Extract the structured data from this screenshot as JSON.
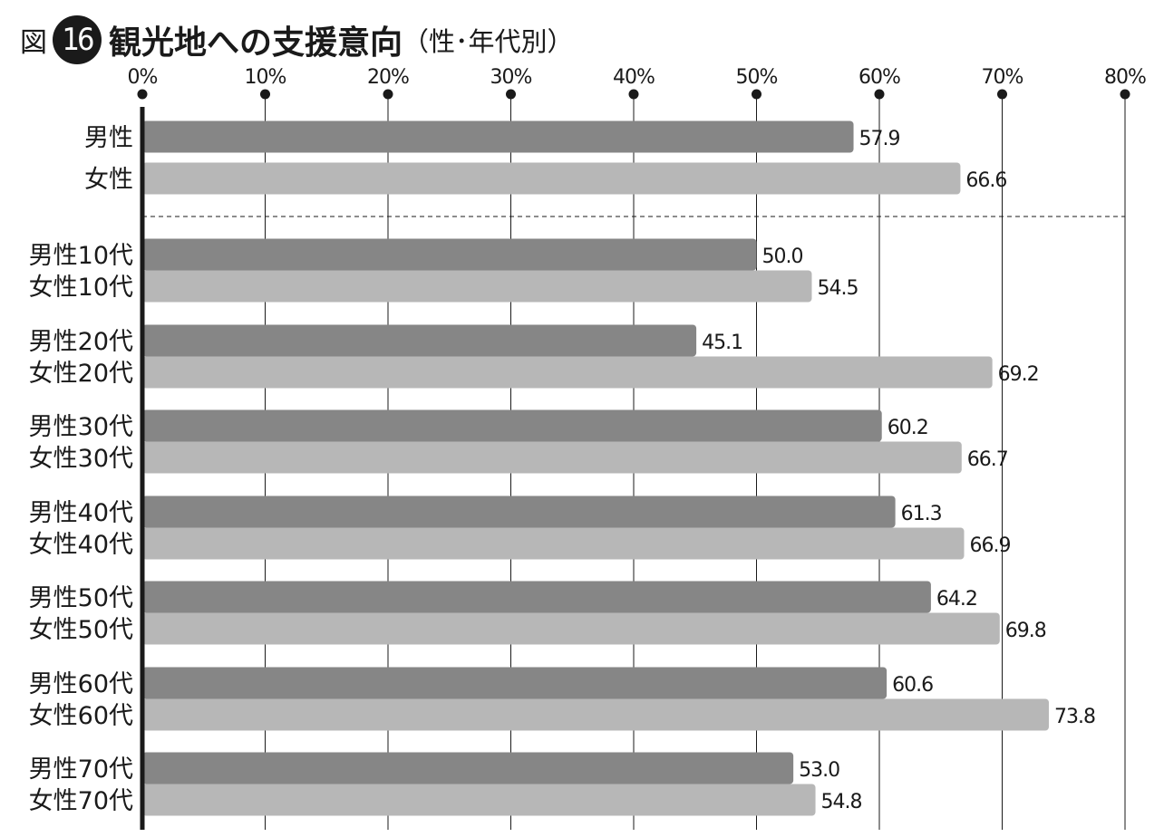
{
  "header": {
    "figure_prefix": "図",
    "figure_number": "16",
    "title": "観光地への支援意向",
    "subtitle": "（性･年代別）"
  },
  "colors": {
    "male": "#868686",
    "female": "#b7b7b7",
    "axis": "#1a1a1a",
    "grid": "#1a1a1a"
  },
  "chart_data": {
    "type": "bar",
    "orientation": "horizontal",
    "title": "観光地への支援意向（性･年代別）",
    "xlim": [
      0,
      80
    ],
    "x_ticks": [
      "0%",
      "10%",
      "20%",
      "30%",
      "40%",
      "50%",
      "60%",
      "70%",
      "80%"
    ],
    "grid": true,
    "groups": [
      {
        "bars": [
          {
            "label": "男性",
            "value": 57.9,
            "value_label": "57.9",
            "gender": "male"
          },
          {
            "label": "女性",
            "value": 66.6,
            "value_label": "66.6",
            "gender": "female"
          }
        ]
      },
      {
        "bars": [
          {
            "label": "男性10代",
            "value": 50.0,
            "value_label": "50.0",
            "gender": "male"
          },
          {
            "label": "女性10代",
            "value": 54.5,
            "value_label": "54.5",
            "gender": "female"
          }
        ]
      },
      {
        "bars": [
          {
            "label": "男性20代",
            "value": 45.1,
            "value_label": "45.1",
            "gender": "male"
          },
          {
            "label": "女性20代",
            "value": 69.2,
            "value_label": "69.2",
            "gender": "female"
          }
        ]
      },
      {
        "bars": [
          {
            "label": "男性30代",
            "value": 60.2,
            "value_label": "60.2",
            "gender": "male"
          },
          {
            "label": "女性30代",
            "value": 66.7,
            "value_label": "66.7",
            "gender": "female"
          }
        ]
      },
      {
        "bars": [
          {
            "label": "男性40代",
            "value": 61.3,
            "value_label": "61.3",
            "gender": "male"
          },
          {
            "label": "女性40代",
            "value": 66.9,
            "value_label": "66.9",
            "gender": "female"
          }
        ]
      },
      {
        "bars": [
          {
            "label": "男性50代",
            "value": 64.2,
            "value_label": "64.2",
            "gender": "male"
          },
          {
            "label": "女性50代",
            "value": 69.8,
            "value_label": "69.8",
            "gender": "female"
          }
        ]
      },
      {
        "bars": [
          {
            "label": "男性60代",
            "value": 60.6,
            "value_label": "60.6",
            "gender": "male"
          },
          {
            "label": "女性60代",
            "value": 73.8,
            "value_label": "73.8",
            "gender": "female"
          }
        ]
      },
      {
        "bars": [
          {
            "label": "男性70代",
            "value": 53.0,
            "value_label": "53.0",
            "gender": "male"
          },
          {
            "label": "女性70代",
            "value": 54.8,
            "value_label": "54.8",
            "gender": "female"
          }
        ]
      }
    ],
    "separator_after_group": 0
  }
}
